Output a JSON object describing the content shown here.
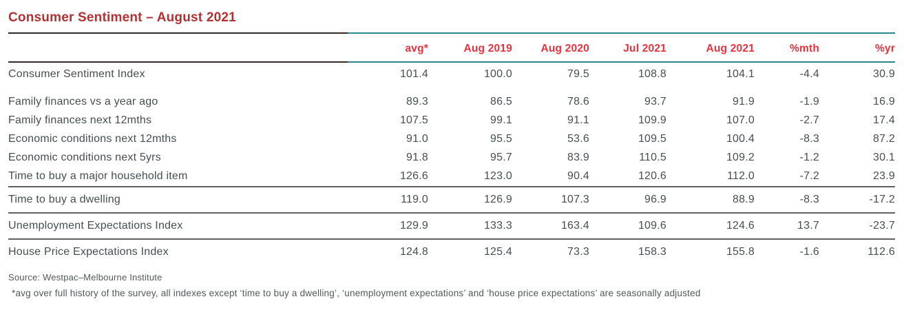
{
  "title": "Consumer Sentiment – August 2021",
  "table": {
    "columns": [
      "",
      "avg*",
      "Aug 2019",
      "Aug 2020",
      "Jul 2021",
      "Aug 2021",
      "%mth",
      "%yr"
    ],
    "groups": [
      {
        "rows": [
          {
            "label": "Consumer Sentiment Index",
            "values": [
              "101.4",
              "100.0",
              "79.5",
              "108.8",
              "104.1",
              "-4.4",
              "30.9"
            ]
          }
        ]
      },
      {
        "rows": [
          {
            "label": "Family finances vs a year ago",
            "values": [
              "89.3",
              "86.5",
              "78.6",
              "93.7",
              "91.9",
              "-1.9",
              "16.9"
            ]
          },
          {
            "label": "Family finances next 12mths",
            "values": [
              "107.5",
              "99.1",
              "91.1",
              "109.9",
              "107.0",
              "-2.7",
              "17.4"
            ]
          },
          {
            "label": "Economic conditions next 12mths",
            "values": [
              "91.0",
              "95.5",
              "53.6",
              "109.5",
              "100.4",
              "-8.3",
              "87.2"
            ]
          },
          {
            "label": "Economic conditions next 5yrs",
            "values": [
              "91.8",
              "95.7",
              "83.9",
              "110.5",
              "109.2",
              "-1.2",
              "30.1"
            ]
          },
          {
            "label": "Time to buy a major household item",
            "values": [
              "126.6",
              "123.0",
              "90.4",
              "120.6",
              "112.0",
              "-7.2",
              "23.9"
            ]
          }
        ]
      },
      {
        "rows": [
          {
            "label": "Time to buy a dwelling",
            "values": [
              "119.0",
              "126.9",
              "107.3",
              "96.9",
              "88.9",
              "-8.3",
              "-17.2"
            ]
          }
        ]
      },
      {
        "rows": [
          {
            "label": "Unemployment Expectations Index",
            "values": [
              "129.9",
              "133.3",
              "163.4",
              "109.6",
              "124.6",
              "13.7",
              "-23.7"
            ]
          }
        ]
      },
      {
        "rows": [
          {
            "label": "House Price Expectations Index",
            "values": [
              "124.8",
              "125.4",
              "73.3",
              "158.3",
              "155.8",
              "-1.6",
              "112.6"
            ]
          }
        ]
      }
    ]
  },
  "source": "Source: Westpac–Melbourne Institute",
  "footnote": "*avg over full history of the survey, all indexes except ‘time to buy a dwelling’, ‘unemployment expectations’ and ‘house price expectations’ are seasonally adjusted",
  "colors": {
    "title_red": "#b23132",
    "header_red": "#e8313c",
    "rule_dark": "#362929",
    "rule_teal": "#2a8790",
    "divider_gray": "#616161",
    "body_text": "#474e50",
    "note_text": "#50585a"
  }
}
